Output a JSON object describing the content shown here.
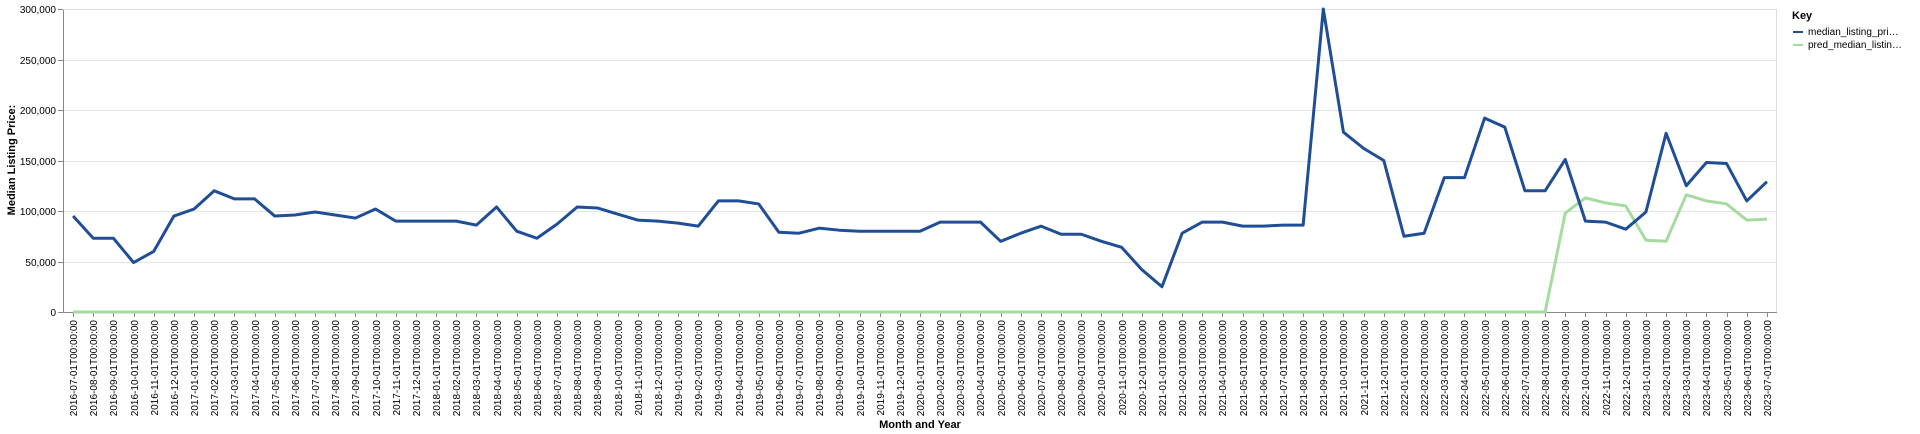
{
  "chart_data": {
    "type": "line",
    "xlabel": "Month and Year",
    "ylabel": "Median Listing Price:",
    "ylim": [
      0,
      300000
    ],
    "y_ticks": [
      "0",
      "50,000",
      "100,000",
      "150,000",
      "200,000",
      "250,000",
      "300,000"
    ],
    "grid": true,
    "legend_title": "Key",
    "legend_position": "top-right",
    "x": [
      "2016-07-01T00:00:00",
      "2016-08-01T00:00:00",
      "2016-09-01T00:00:00",
      "2016-10-01T00:00:00",
      "2016-11-01T00:00:00",
      "2016-12-01T00:00:00",
      "2017-01-01T00:00:00",
      "2017-02-01T00:00:00",
      "2017-03-01T00:00:00",
      "2017-04-01T00:00:00",
      "2017-05-01T00:00:00",
      "2017-06-01T00:00:00",
      "2017-07-01T00:00:00",
      "2017-08-01T00:00:00",
      "2017-09-01T00:00:00",
      "2017-10-01T00:00:00",
      "2017-11-01T00:00:00",
      "2017-12-01T00:00:00",
      "2018-01-01T00:00:00",
      "2018-02-01T00:00:00",
      "2018-03-01T00:00:00",
      "2018-04-01T00:00:00",
      "2018-05-01T00:00:00",
      "2018-06-01T00:00:00",
      "2018-07-01T00:00:00",
      "2018-08-01T00:00:00",
      "2018-09-01T00:00:00",
      "2018-10-01T00:00:00",
      "2018-11-01T00:00:00",
      "2018-12-01T00:00:00",
      "2019-01-01T00:00:00",
      "2019-02-01T00:00:00",
      "2019-03-01T00:00:00",
      "2019-04-01T00:00:00",
      "2019-05-01T00:00:00",
      "2019-06-01T00:00:00",
      "2019-07-01T00:00:00",
      "2019-08-01T00:00:00",
      "2019-09-01T00:00:00",
      "2019-10-01T00:00:00",
      "2019-11-01T00:00:00",
      "2019-12-01T00:00:00",
      "2020-01-01T00:00:00",
      "2020-02-01T00:00:00",
      "2020-03-01T00:00:00",
      "2020-04-01T00:00:00",
      "2020-05-01T00:00:00",
      "2020-06-01T00:00:00",
      "2020-07-01T00:00:00",
      "2020-08-01T00:00:00",
      "2020-09-01T00:00:00",
      "2020-10-01T00:00:00",
      "2020-11-01T00:00:00",
      "2020-12-01T00:00:00",
      "2021-01-01T00:00:00",
      "2021-02-01T00:00:00",
      "2021-03-01T00:00:00",
      "2021-04-01T00:00:00",
      "2021-05-01T00:00:00",
      "2021-06-01T00:00:00",
      "2021-07-01T00:00:00",
      "2021-08-01T00:00:00",
      "2021-09-01T00:00:00",
      "2021-10-01T00:00:00",
      "2021-11-01T00:00:00",
      "2021-12-01T00:00:00",
      "2022-01-01T00:00:00",
      "2022-02-01T00:00:00",
      "2022-03-01T00:00:00",
      "2022-04-01T00:00:00",
      "2022-05-01T00:00:00",
      "2022-06-01T00:00:00",
      "2022-07-01T00:00:00",
      "2022-08-01T00:00:00",
      "2022-09-01T00:00:00",
      "2022-10-01T00:00:00",
      "2022-11-01T00:00:00",
      "2022-12-01T00:00:00",
      "2023-01-01T00:00:00",
      "2023-02-01T00:00:00",
      "2023-03-01T00:00:00",
      "2023-04-01T00:00:00",
      "2023-05-01T00:00:00",
      "2023-06-01T00:00:00",
      "2023-07-01T00:00:00"
    ],
    "series": [
      {
        "name": "median_listing_pri…",
        "color": "#1f4e96",
        "values": [
          95000,
          73000,
          73000,
          49000,
          60000,
          95000,
          102000,
          120000,
          112000,
          112000,
          95000,
          96000,
          99000,
          96000,
          93000,
          102000,
          90000,
          90000,
          90000,
          90000,
          86000,
          104000,
          80000,
          73000,
          87000,
          104000,
          103000,
          97000,
          91000,
          90000,
          88000,
          85000,
          110000,
          110000,
          107000,
          79000,
          78000,
          83000,
          81000,
          80000,
          80000,
          80000,
          80000,
          89000,
          89000,
          89000,
          70000,
          78000,
          85000,
          77000,
          77000,
          70000,
          64000,
          42000,
          25000,
          78000,
          89000,
          89000,
          85000,
          85000,
          86000,
          86000,
          300000,
          178000,
          162000,
          150000,
          75000,
          78000,
          133000,
          133000,
          192000,
          183000,
          120000,
          120000,
          151000,
          90000,
          89000,
          82000,
          99000,
          177000,
          125000,
          148000,
          147000,
          110000,
          129000
        ]
      },
      {
        "name": "pred_median_listin…",
        "color": "#a6dba0",
        "values": [
          0,
          0,
          0,
          0,
          0,
          0,
          0,
          0,
          0,
          0,
          0,
          0,
          0,
          0,
          0,
          0,
          0,
          0,
          0,
          0,
          0,
          0,
          0,
          0,
          0,
          0,
          0,
          0,
          0,
          0,
          0,
          0,
          0,
          0,
          0,
          0,
          0,
          0,
          0,
          0,
          0,
          0,
          0,
          0,
          0,
          0,
          0,
          0,
          0,
          0,
          0,
          0,
          0,
          0,
          0,
          0,
          0,
          0,
          0,
          0,
          0,
          0,
          0,
          0,
          0,
          0,
          0,
          0,
          0,
          0,
          0,
          0,
          0,
          0,
          98000,
          113000,
          108000,
          105000,
          71000,
          70000,
          116000,
          110000,
          107000,
          91000,
          92000
        ]
      }
    ]
  }
}
